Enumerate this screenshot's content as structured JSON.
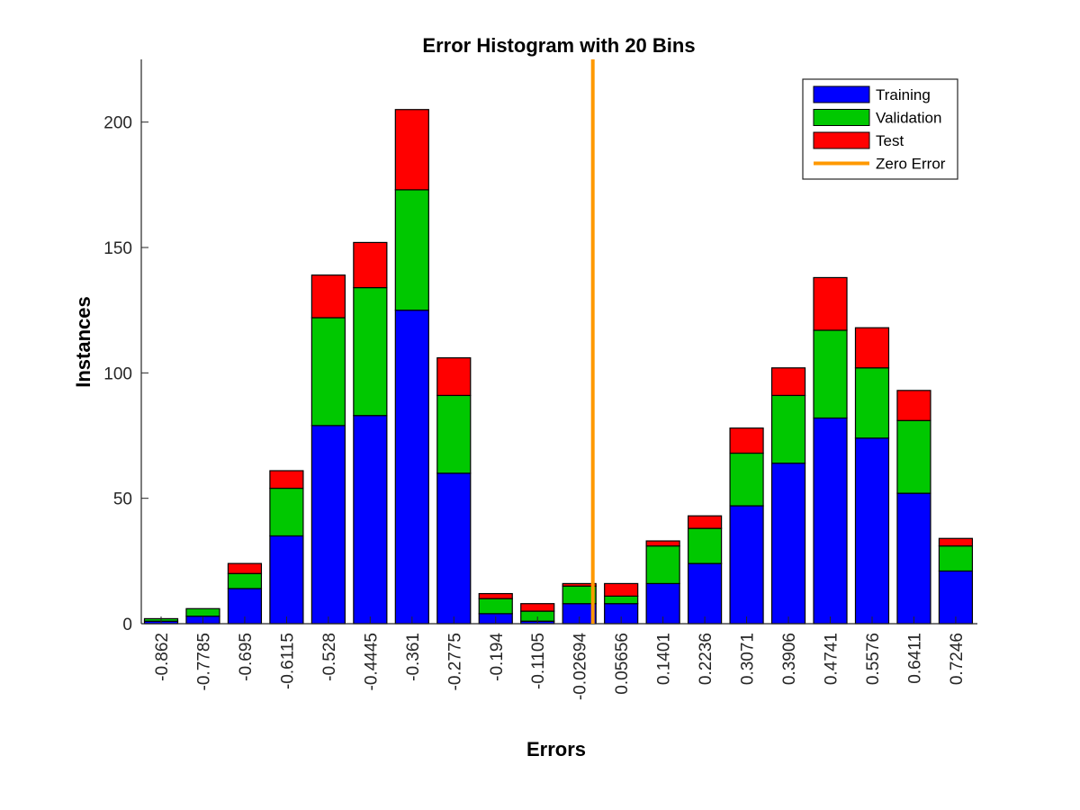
{
  "chart_data": {
    "type": "bar",
    "stacked": true,
    "title": "Error Histogram with 20 Bins",
    "xlabel": "Errors",
    "ylabel": "Instances",
    "ylim": [
      0,
      225
    ],
    "yticks": [
      0,
      50,
      100,
      150,
      200
    ],
    "categories": [
      "-0.862",
      "-0.7785",
      "-0.695",
      "-0.6115",
      "-0.528",
      "-0.4445",
      "-0.361",
      "-0.2775",
      "-0.194",
      "-0.1105",
      "-0.02694",
      "0.05656",
      "0.1401",
      "0.2236",
      "0.3071",
      "0.3906",
      "0.4741",
      "0.5576",
      "0.6411",
      "0.7246"
    ],
    "series": [
      {
        "name": "Training",
        "color": "#0000ff",
        "values": [
          1,
          3,
          14,
          35,
          79,
          83,
          125,
          60,
          4,
          1,
          8,
          8,
          16,
          24,
          47,
          64,
          82,
          74,
          52,
          21
        ]
      },
      {
        "name": "Validation",
        "color": "#00c800",
        "values": [
          1,
          3,
          6,
          19,
          43,
          51,
          48,
          31,
          6,
          4,
          7,
          3,
          15,
          14,
          21,
          27,
          35,
          28,
          29,
          10
        ]
      },
      {
        "name": "Test",
        "color": "#ff0000",
        "values": [
          0,
          0,
          4,
          7,
          17,
          18,
          32,
          15,
          2,
          3,
          1,
          5,
          2,
          5,
          10,
          11,
          21,
          16,
          12,
          3
        ]
      }
    ],
    "zero_error": {
      "name": "Zero Error",
      "x_position_between": [
        "-0.02694",
        "0.05656"
      ],
      "color": "#ff9900"
    },
    "legend": {
      "placement": "top-right",
      "entries": [
        "Training",
        "Validation",
        "Test",
        "Zero Error"
      ]
    },
    "grid": false
  }
}
